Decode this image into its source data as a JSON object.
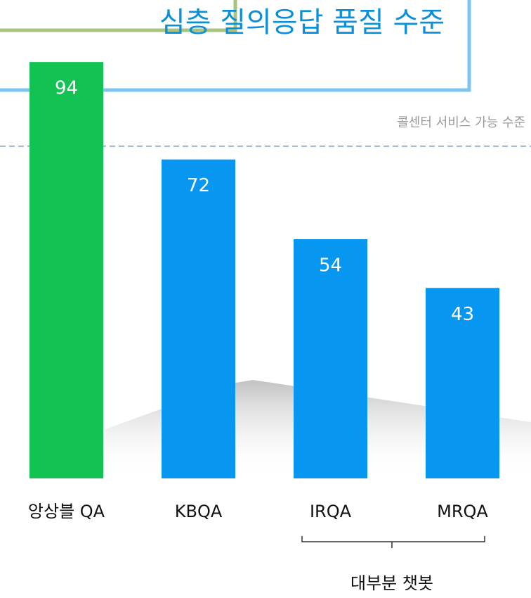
{
  "chart_data": {
    "type": "bar",
    "title": "심층 질의응답 품질 수준",
    "categories": [
      "앙상블 QA",
      "KBQA",
      "IRQA",
      "MRQA"
    ],
    "values": [
      94,
      72,
      54,
      43
    ],
    "colors": [
      "#12c253",
      "#0797f0",
      "#0797f0",
      "#0797f0"
    ],
    "ylim": [
      0,
      108
    ],
    "threshold": {
      "value": 75,
      "label": "콜센터 서비스 가능 수준"
    },
    "bracket_label": "대부분 챗봇"
  }
}
